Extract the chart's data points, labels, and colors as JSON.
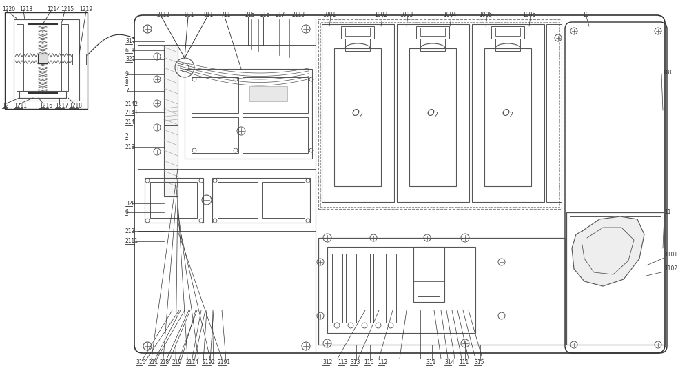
{
  "bg_color": "#ffffff",
  "lc": "#555555",
  "dc": "#333333",
  "lgc": "#aaaaaa",
  "dash_c": "#888888",
  "fig_width": 10.0,
  "fig_height": 5.41,
  "dpi": 100
}
